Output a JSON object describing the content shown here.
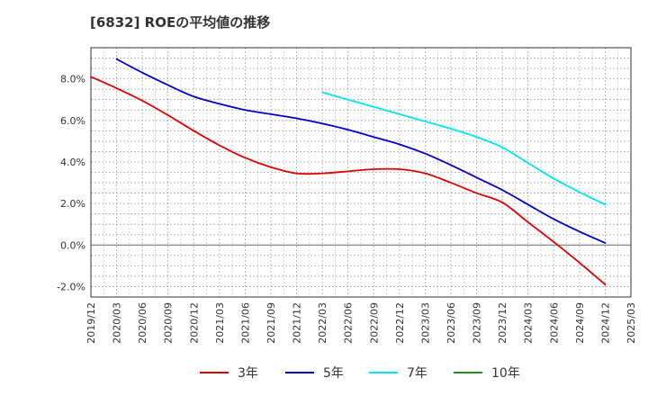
{
  "chart_data": {
    "type": "line",
    "title": "[6832]  ROEの平均値の推移",
    "x": [
      "2019/12",
      "2020/03",
      "2020/06",
      "2020/09",
      "2020/12",
      "2021/03",
      "2021/06",
      "2021/09",
      "2021/12",
      "2022/03",
      "2022/06",
      "2022/09",
      "2022/12",
      "2023/03",
      "2023/06",
      "2023/09",
      "2023/12",
      "2024/03",
      "2024/06",
      "2024/09",
      "2024/12",
      "2025/03"
    ],
    "ylim": [
      -2.5,
      9.5
    ],
    "yticks": [
      -2.0,
      0.0,
      2.0,
      4.0,
      6.0,
      8.0
    ],
    "ytick_labels": [
      "-2.0%",
      "0.0%",
      "2.0%",
      "4.0%",
      "6.0%",
      "8.0%"
    ],
    "grid": true,
    "legend_position": "bottom",
    "series": [
      {
        "name": "3年",
        "color": "#e00000",
        "values": [
          8.1,
          7.55,
          6.95,
          6.25,
          5.5,
          4.8,
          4.2,
          3.75,
          3.45,
          3.45,
          3.55,
          3.65,
          3.65,
          3.45,
          3.0,
          2.5,
          2.05,
          1.1,
          0.15,
          -0.85,
          -1.9,
          null
        ]
      },
      {
        "name": "5年",
        "color": "#0000cc",
        "values": [
          null,
          8.95,
          8.3,
          7.7,
          7.15,
          6.8,
          6.5,
          6.3,
          6.1,
          5.85,
          5.55,
          5.2,
          4.85,
          4.4,
          3.85,
          3.25,
          2.65,
          1.95,
          1.25,
          0.65,
          0.1,
          null
        ]
      },
      {
        "name": "7年",
        "color": "#00e5ee",
        "values": [
          null,
          null,
          null,
          null,
          null,
          null,
          null,
          null,
          null,
          7.35,
          7.0,
          6.65,
          6.3,
          5.95,
          5.6,
          5.2,
          4.7,
          3.95,
          3.2,
          2.55,
          1.95,
          null
        ]
      },
      {
        "name": "10年",
        "color": "#228b22",
        "values": [
          null,
          null,
          null,
          null,
          null,
          null,
          null,
          null,
          null,
          null,
          null,
          null,
          null,
          null,
          null,
          null,
          null,
          null,
          null,
          null,
          null,
          null
        ]
      }
    ]
  }
}
